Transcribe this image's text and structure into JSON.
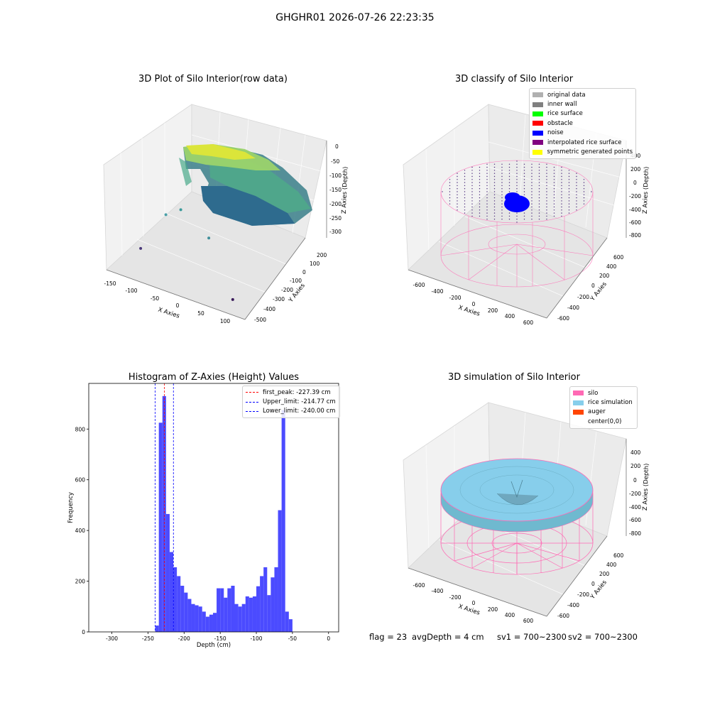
{
  "suptitle": "GHGHR01 2026-07-26 22:23:35",
  "status": {
    "flag": "flag = 23",
    "avg_depth": "avgDepth = 4 cm",
    "sv1": "sv1 = 700~2300",
    "sv2": "sv2 = 700~2300"
  },
  "chart_data": [
    {
      "type": "scatter",
      "title": "3D Plot of Silo Interior(row data)",
      "xlabel": "X Axies",
      "ylabel": "Y Axies",
      "zlabel": "Z Axies (Depth)",
      "xlim": [
        -160,
        130
      ],
      "ylim": [
        -530,
        270
      ],
      "zlim": [
        -330,
        10
      ],
      "xticks": [
        "-150",
        "-100",
        "-50",
        "0",
        "50",
        "100"
      ],
      "yticks": [
        "-500",
        "-400",
        "-300",
        "-200",
        "-100",
        "0",
        "100",
        "200"
      ],
      "zticks": [
        "0",
        "-50",
        "-100",
        "-150",
        "-200",
        "-250",
        "-300"
      ],
      "colormap": "viridis",
      "outlier_points": [
        {
          "x": -85,
          "y": -20,
          "z": -250
        },
        {
          "x": -110,
          "y": -60,
          "z": -270
        },
        {
          "x": -20,
          "y": -60,
          "z": -300
        },
        {
          "x": -120,
          "y": -330,
          "z": -300
        },
        {
          "x": 95,
          "y": -470,
          "z": -300
        }
      ],
      "grid": true
    },
    {
      "type": "scatter",
      "title": "3D classify of Silo Interior",
      "xlabel": "X Axies",
      "ylabel": "Y Axies",
      "zlabel": "Z Axies (Depth)",
      "xlim": [
        -700,
        700
      ],
      "ylim": [
        -700,
        700
      ],
      "zlim": [
        -900,
        400
      ],
      "xticks": [
        "-600",
        "-400",
        "-200",
        "0",
        "200",
        "400",
        "600"
      ],
      "yticks": [
        "-600",
        "-400",
        "-200",
        "0",
        "200",
        "400",
        "600"
      ],
      "zticks": [
        "400",
        "200",
        "0",
        "-200",
        "-400",
        "-600",
        "-800"
      ],
      "legend": [
        {
          "label": "original data",
          "color": "#b0b0b0"
        },
        {
          "label": "inner wall",
          "color": "#808080"
        },
        {
          "label": "rice surface",
          "color": "#00ff00"
        },
        {
          "label": "obstacle",
          "color": "#ff0000"
        },
        {
          "label": "noise",
          "color": "#0000ff"
        },
        {
          "label": "interpolated rice surface",
          "color": "#800080"
        },
        {
          "label": "symmetric generated points",
          "color": "#ffff00"
        }
      ],
      "legend_position": "top-right",
      "silo_color": "#ff69b4",
      "grid": true
    },
    {
      "type": "bar",
      "title": "Histogram of Z-Axies (Height) Values",
      "xlabel": "Depth (cm)",
      "ylabel": "Frequency",
      "xlim": [
        -332,
        14
      ],
      "ylim": [
        0,
        980
      ],
      "xticks": [
        -300,
        -250,
        -200,
        -150,
        -100,
        -50,
        0
      ],
      "yticks": [
        0,
        200,
        400,
        600,
        800
      ],
      "bin_width": 5,
      "bins": [
        {
          "x": -240,
          "value": 25
        },
        {
          "x": -235,
          "value": 825
        },
        {
          "x": -230,
          "value": 930
        },
        {
          "x": -225,
          "value": 465
        },
        {
          "x": -220,
          "value": 315
        },
        {
          "x": -215,
          "value": 255
        },
        {
          "x": -210,
          "value": 220
        },
        {
          "x": -205,
          "value": 182
        },
        {
          "x": -200,
          "value": 155
        },
        {
          "x": -195,
          "value": 130
        },
        {
          "x": -190,
          "value": 110
        },
        {
          "x": -185,
          "value": 105
        },
        {
          "x": -180,
          "value": 100
        },
        {
          "x": -175,
          "value": 80
        },
        {
          "x": -170,
          "value": 60
        },
        {
          "x": -165,
          "value": 68
        },
        {
          "x": -160,
          "value": 75
        },
        {
          "x": -155,
          "value": 172
        },
        {
          "x": -150,
          "value": 172
        },
        {
          "x": -145,
          "value": 135
        },
        {
          "x": -140,
          "value": 172
        },
        {
          "x": -135,
          "value": 182
        },
        {
          "x": -130,
          "value": 110
        },
        {
          "x": -125,
          "value": 100
        },
        {
          "x": -120,
          "value": 110
        },
        {
          "x": -115,
          "value": 140
        },
        {
          "x": -110,
          "value": 135
        },
        {
          "x": -105,
          "value": 140
        },
        {
          "x": -100,
          "value": 180
        },
        {
          "x": -95,
          "value": 220
        },
        {
          "x": -90,
          "value": 255
        },
        {
          "x": -85,
          "value": 145
        },
        {
          "x": -80,
          "value": 215
        },
        {
          "x": -75,
          "value": 255
        },
        {
          "x": -70,
          "value": 480
        },
        {
          "x": -65,
          "value": 875
        },
        {
          "x": -60,
          "value": 80
        },
        {
          "x": -55,
          "value": 50
        }
      ],
      "bar_color": "#4b4bff",
      "vlines": [
        {
          "label": "first_peak: -227.39 cm",
          "x": -227.39,
          "color": "#ff0000"
        },
        {
          "label": "Upper_limit: -214.77 cm",
          "x": -214.77,
          "color": "#0000ff"
        },
        {
          "label": "Lower_limit: -240.00 cm",
          "x": -240.0,
          "color": "#0000ff"
        }
      ],
      "legend_position": "top-right"
    },
    {
      "type": "scatter",
      "title": "3D simulation of Silo Interior",
      "xlabel": "X Axies",
      "ylabel": "Y Axies",
      "zlabel": "Z Axies (Depth)",
      "xlim": [
        -700,
        700
      ],
      "ylim": [
        -700,
        700
      ],
      "zlim": [
        -900,
        400
      ],
      "xticks": [
        "-600",
        "-400",
        "-200",
        "0",
        "200",
        "400",
        "600"
      ],
      "yticks": [
        "-600",
        "-400",
        "-200",
        "0",
        "200",
        "400",
        "600"
      ],
      "zticks": [
        "400",
        "200",
        "0",
        "-200",
        "-400",
        "-600",
        "-800"
      ],
      "legend": [
        {
          "label": "silo",
          "color": "#ff69b4"
        },
        {
          "label": "rice simulation",
          "color": "#87ceeb"
        },
        {
          "label": "auger",
          "color": "#ff4500"
        },
        {
          "label": "center(0,0)",
          "color": "#ffffff"
        }
      ],
      "legend_position": "top-right",
      "grid": true
    }
  ]
}
